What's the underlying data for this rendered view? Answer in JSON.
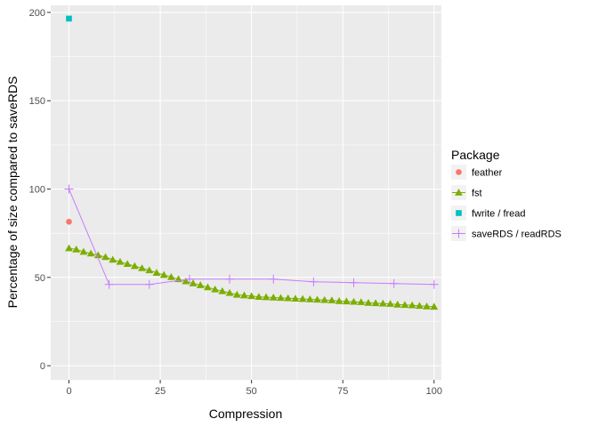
{
  "chart_data": {
    "type": "scatter",
    "xlabel": "Compression",
    "ylabel": "Percentage of size compared to saveRDS",
    "xlim": [
      -5,
      102
    ],
    "ylim": [
      -8,
      204
    ],
    "xticks": [
      0,
      25,
      50,
      75,
      100
    ],
    "yticks": [
      0,
      50,
      100,
      150,
      200
    ],
    "grid": true,
    "legend": {
      "title": "Package",
      "position": "right"
    },
    "colors": {
      "panel": "#ebebeb",
      "grid": "#ffffff",
      "tick_mark": "#333333"
    },
    "series": [
      {
        "name": "feather",
        "marker": "circle",
        "line": false,
        "color": "#f8766d",
        "points": [
          [
            0,
            81.5
          ]
        ]
      },
      {
        "name": "fst",
        "marker": "triangle",
        "line": true,
        "color": "#7cae00",
        "points": [
          [
            0,
            66.5
          ],
          [
            2,
            65.8
          ],
          [
            4,
            64.5
          ],
          [
            6,
            63.5
          ],
          [
            8,
            62.5
          ],
          [
            10,
            61.5
          ],
          [
            12,
            60
          ],
          [
            14,
            58.8
          ],
          [
            16,
            57.6
          ],
          [
            18,
            56.4
          ],
          [
            20,
            55.2
          ],
          [
            22,
            54
          ],
          [
            24,
            52.6
          ],
          [
            26,
            51.4
          ],
          [
            28,
            50.2
          ],
          [
            30,
            49
          ],
          [
            32,
            47.8
          ],
          [
            34,
            46.6
          ],
          [
            36,
            45.6
          ],
          [
            38,
            44.4
          ],
          [
            40,
            43.2
          ],
          [
            42,
            42.2
          ],
          [
            44,
            41.2
          ],
          [
            46,
            40.2
          ],
          [
            48,
            39.8
          ],
          [
            50,
            39.4
          ],
          [
            52,
            39
          ],
          [
            54,
            38.8
          ],
          [
            56,
            38.6
          ],
          [
            58,
            38.4
          ],
          [
            60,
            38.2
          ],
          [
            62,
            38
          ],
          [
            64,
            37.8
          ],
          [
            66,
            37.6
          ],
          [
            68,
            37.4
          ],
          [
            70,
            37.2
          ],
          [
            72,
            37
          ],
          [
            74,
            36.6
          ],
          [
            76,
            36.4
          ],
          [
            78,
            36.2
          ],
          [
            80,
            36
          ],
          [
            82,
            35.6
          ],
          [
            84,
            35.4
          ],
          [
            86,
            35.2
          ],
          [
            88,
            35
          ],
          [
            90,
            34.6
          ],
          [
            92,
            34.4
          ],
          [
            94,
            34.2
          ],
          [
            96,
            33.9
          ],
          [
            98,
            33.6
          ],
          [
            100,
            33.4
          ]
        ]
      },
      {
        "name": "fwrite / fread",
        "marker": "square",
        "line": false,
        "color": "#00bfc4",
        "points": [
          [
            0,
            196.5
          ]
        ]
      },
      {
        "name": "saveRDS / readRDS",
        "marker": "plus",
        "line": true,
        "color": "#c77cff",
        "points": [
          [
            0,
            100
          ],
          [
            11,
            46
          ],
          [
            22,
            46
          ],
          [
            33,
            49
          ],
          [
            44,
            49
          ],
          [
            56,
            49
          ],
          [
            67,
            47.5
          ],
          [
            78,
            47
          ],
          [
            89,
            46.5
          ],
          [
            100,
            46
          ]
        ]
      }
    ]
  }
}
